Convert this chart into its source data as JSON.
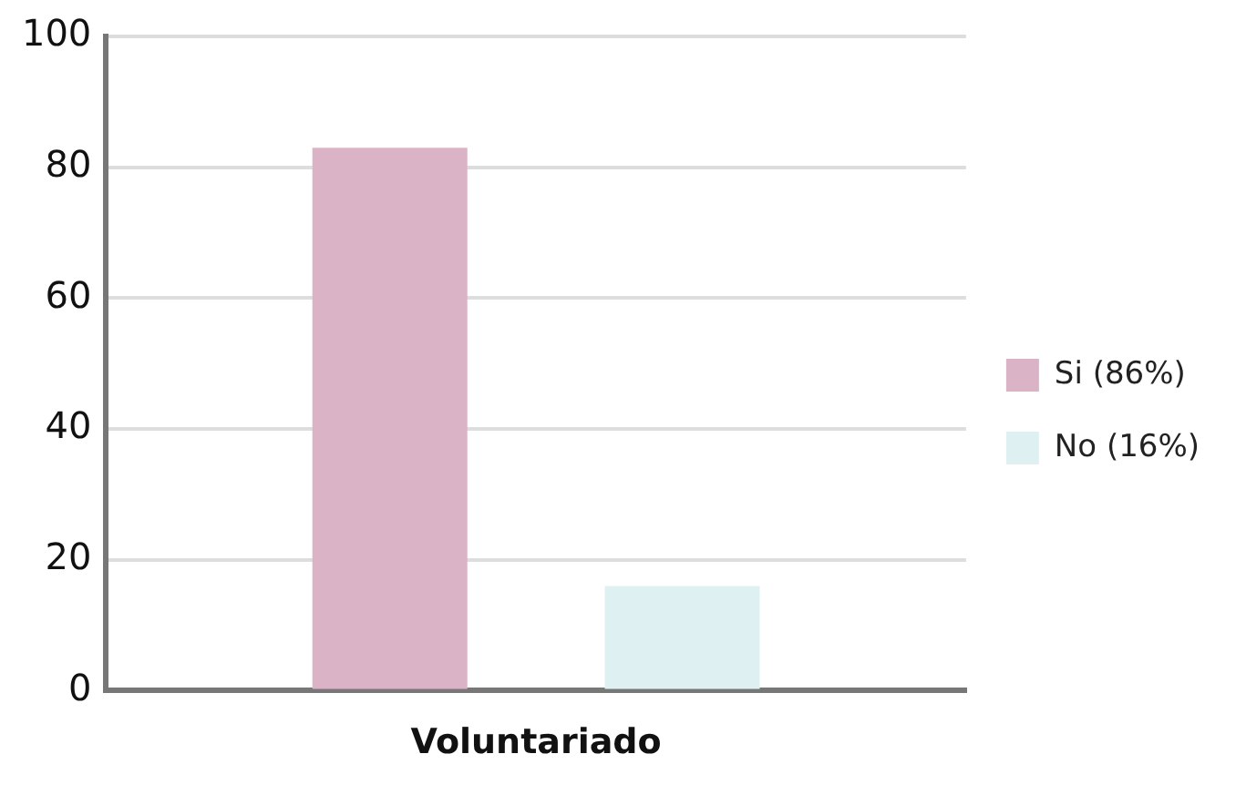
{
  "chart_data": {
    "type": "bar",
    "categories": [
      "Voluntariado"
    ],
    "series": [
      {
        "name": "Si (86%)",
        "color": "#dbb3c6",
        "values": [
          83
        ]
      },
      {
        "name": "No (16%)",
        "color": "#dff0f3",
        "values": [
          16
        ]
      }
    ],
    "ylim": [
      0,
      100
    ],
    "yticks": [
      0,
      20,
      40,
      60,
      80,
      100
    ],
    "grid": "y",
    "legend": "right"
  }
}
